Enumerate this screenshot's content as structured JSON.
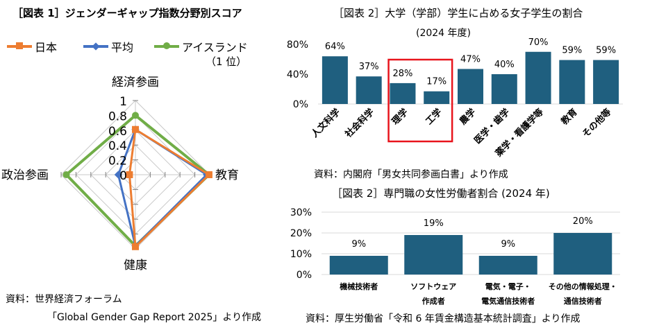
{
  "radar": {
    "title": "［図表 1］ジェンダーギャップ指数分野別スコア",
    "source_line1": "資料：世界経済フォーラム",
    "source_line2": "「Global Gender Gap Report 2025」より作成",
    "legend": [
      {
        "label": "日本",
        "color": "#ED7D31",
        "marker": "square"
      },
      {
        "label": "平均",
        "color": "#4472C4",
        "marker": "diamond"
      },
      {
        "label": "アイスランド",
        "label2": "（1 位）",
        "color": "#70AD47",
        "marker": "circle"
      }
    ]
  },
  "bar1": {
    "title": "［図表 2］大学（学部）学生に占める女子学生の割合",
    "subtitle": "(2024 年度)",
    "source": "資料：内閣府「男女共同参画白書」より作成"
  },
  "bar2": {
    "title": "［図表 2］専門職の女性労働者割合 (2024 年)",
    "source": "資料：厚生労働省「令和 6 年賃金構造基本統計調査」より作成"
  },
  "chart_data": [
    {
      "type": "radar",
      "axes": [
        "経済参画",
        "教育",
        "健康",
        "政治参画"
      ],
      "range": [
        0,
        1
      ],
      "ticks": [
        "0",
        "0.2",
        "0.4",
        "0.6",
        "0.8",
        "1"
      ],
      "series": [
        {
          "name": "日本",
          "values": [
            0.61,
            0.99,
            0.97,
            0.08
          ]
        },
        {
          "name": "平均",
          "values": [
            0.61,
            0.96,
            0.96,
            0.23
          ]
        },
        {
          "name": "アイスランド",
          "label2": "（1 位）",
          "values": [
            0.8,
            0.99,
            0.96,
            0.93
          ]
        }
      ]
    },
    {
      "type": "bar",
      "categories": [
        "人文科学",
        "社会科学",
        "理学",
        "工学",
        "農学",
        "医学・歯学",
        "薬学・看護学等",
        "教育",
        "その他等"
      ],
      "values": [
        64,
        37,
        28,
        17,
        47,
        40,
        70,
        59,
        59
      ],
      "data_labels": [
        "64%",
        "37%",
        "28%",
        "17%",
        "47%",
        "40%",
        "70%",
        "59%",
        "59%"
      ],
      "yticks": [
        "0%",
        "40%",
        "80%"
      ],
      "ylim": [
        0,
        80
      ],
      "highlighted": [
        "理学",
        "工学"
      ],
      "bar_color": "#1F5F7F",
      "highlight_color": "#E8141C"
    },
    {
      "type": "bar",
      "categories": [
        [
          "機械技術者"
        ],
        [
          "ソフトウェア",
          "作成者"
        ],
        [
          "電気・電子・",
          "電気通信技術者"
        ],
        [
          "その他の情報処理・",
          "通信技術者"
        ]
      ],
      "values": [
        9,
        19,
        9,
        20
      ],
      "data_labels": [
        "9%",
        "19%",
        "9%",
        "20%"
      ],
      "yticks": [
        "0%",
        "10%",
        "20%",
        "30%"
      ],
      "ylim": [
        0,
        30
      ],
      "bar_color": "#1F5F7F"
    }
  ]
}
